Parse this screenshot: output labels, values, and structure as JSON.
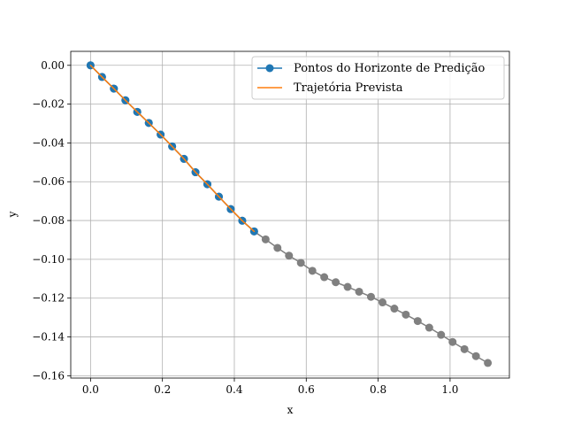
{
  "chart_data": {
    "type": "line",
    "xlabel": "x",
    "ylabel": "y",
    "xlim": [
      -0.055,
      1.165
    ],
    "ylim": [
      -0.1612,
      0.0072
    ],
    "x_ticks": [
      0.0,
      0.2,
      0.4,
      0.6,
      0.8,
      1.0
    ],
    "x_tick_labels": [
      "0.0",
      "0.2",
      "0.4",
      "0.6",
      "0.8",
      "1.0"
    ],
    "y_ticks": [
      0.0,
      -0.02,
      -0.04,
      -0.06,
      -0.08,
      -0.1,
      -0.12,
      -0.14,
      -0.16
    ],
    "y_tick_labels": [
      "0.00",
      "−0.02",
      "−0.04",
      "−0.06",
      "−0.08",
      "−0.10",
      "−0.12",
      "−0.14",
      "−0.16"
    ],
    "grid": true,
    "legend_position": "top-right",
    "series": [
      {
        "name": "",
        "style": "markers-line",
        "color": "#808080",
        "x": [
          0.0,
          0.032,
          0.065,
          0.097,
          0.13,
          0.162,
          0.195,
          0.227,
          0.26,
          0.292,
          0.325,
          0.357,
          0.39,
          0.422,
          0.455,
          0.487,
          0.52,
          0.552,
          0.585,
          0.617,
          0.65,
          0.682,
          0.715,
          0.747,
          0.78,
          0.812,
          0.845,
          0.877,
          0.91,
          0.942,
          0.975,
          1.007,
          1.04,
          1.072,
          1.105
        ],
        "y": [
          0.0,
          -0.006,
          -0.012,
          -0.018,
          -0.024,
          -0.0297,
          -0.0357,
          -0.0418,
          -0.0482,
          -0.0551,
          -0.0613,
          -0.0677,
          -0.0741,
          -0.0801,
          -0.0856,
          -0.0897,
          -0.0941,
          -0.0981,
          -0.1018,
          -0.1059,
          -0.1092,
          -0.1118,
          -0.1142,
          -0.1167,
          -0.1193,
          -0.1222,
          -0.1254,
          -0.1285,
          -0.1318,
          -0.1352,
          -0.1389,
          -0.1426,
          -0.1463,
          -0.1499,
          -0.1534
        ]
      },
      {
        "name": "Pontos do Horizonte de Predição",
        "style": "markers-line",
        "color": "#1f77b4",
        "x": [
          0.0,
          0.032,
          0.065,
          0.097,
          0.13,
          0.162,
          0.195,
          0.227,
          0.26,
          0.292,
          0.325,
          0.357,
          0.39,
          0.422,
          0.455
        ],
        "y": [
          0.0,
          -0.006,
          -0.012,
          -0.018,
          -0.024,
          -0.0297,
          -0.0357,
          -0.0418,
          -0.0482,
          -0.0551,
          -0.0613,
          -0.0677,
          -0.0741,
          -0.0801,
          -0.0856
        ]
      },
      {
        "name": "Trajetória Prevista",
        "style": "line",
        "color": "#ff7f0e",
        "x": [
          0.0,
          0.032,
          0.065,
          0.097,
          0.13,
          0.162,
          0.195,
          0.227,
          0.26,
          0.292,
          0.325,
          0.357,
          0.39,
          0.422,
          0.455
        ],
        "y": [
          0.0,
          -0.006,
          -0.012,
          -0.018,
          -0.024,
          -0.0297,
          -0.0357,
          -0.0418,
          -0.0482,
          -0.0551,
          -0.0613,
          -0.0677,
          -0.0741,
          -0.0801,
          -0.0856
        ]
      }
    ]
  }
}
